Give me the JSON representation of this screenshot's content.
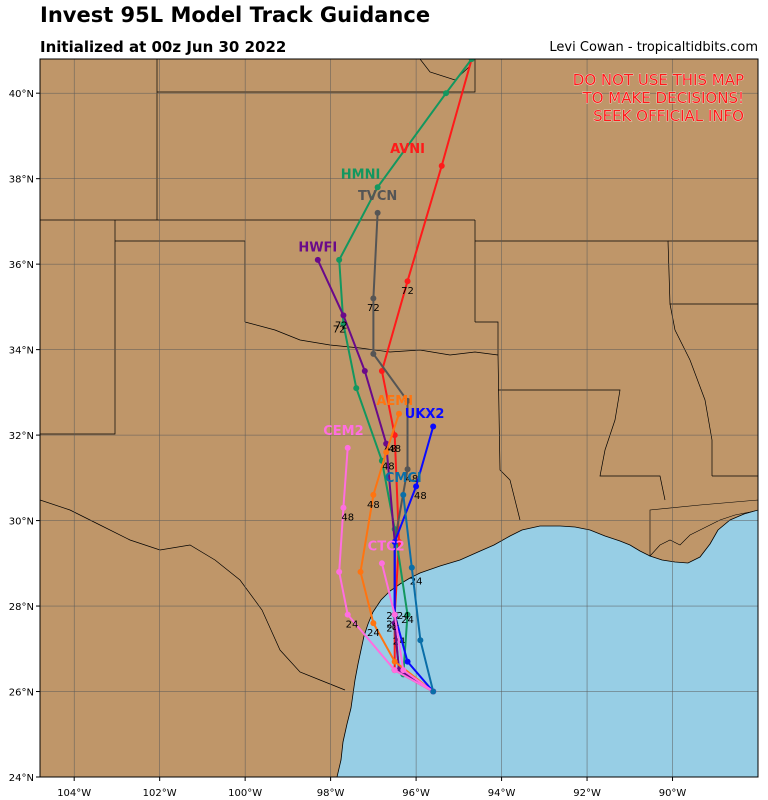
{
  "header": {
    "title": "Invest 95L Model Track Guidance",
    "subtitle": "Initialized at 00z Jun 30 2022",
    "credit": "Levi Cowan - tropicaltidbits.com"
  },
  "warning": [
    "DO NOT USE THIS MAP",
    "TO MAKE DECISIONS!",
    "SEEK OFFICIAL INFO"
  ],
  "colors": {
    "land": "#bf9669",
    "water": "#97cee5",
    "warning": "#ff1a1a"
  },
  "axes": {
    "lon_ticks": [
      "104°W",
      "102°W",
      "100°W",
      "98°W",
      "96°W",
      "94°W",
      "92°W",
      "90°W"
    ],
    "lat_ticks": [
      "40°N",
      "38°N",
      "36°N",
      "34°N",
      "32°N",
      "30°N",
      "28°N",
      "26°N",
      "24°N"
    ]
  },
  "chart_data": {
    "type": "map-tracks",
    "lon_range": [
      -104.8,
      -88.0
    ],
    "lat_range": [
      24.0,
      40.8
    ],
    "tracks": [
      {
        "name": "AVNI",
        "color": "#ff1a1a",
        "label_at": [
          -96.2,
          38.6
        ],
        "points": [
          [
            -95.6,
            26.0
          ],
          [
            -96.5,
            26.5
          ],
          [
            -96.5,
            27.8
          ],
          [
            -96.4,
            29.5
          ],
          [
            -96.5,
            32.0
          ],
          [
            -96.8,
            33.5
          ],
          [
            -96.2,
            35.6
          ],
          [
            -95.4,
            38.3
          ],
          [
            -94.7,
            40.8
          ]
        ],
        "hour_labels": [
          {
            "text": "24",
            "at": [
              -96.55,
              27.7
            ]
          },
          {
            "text": "48",
            "at": [
              -96.5,
              31.6
            ]
          },
          {
            "text": "72",
            "at": [
              -96.2,
              35.3
            ]
          }
        ]
      },
      {
        "name": "HMNI",
        "color": "#13975f",
        "label_at": [
          -97.3,
          38.0
        ],
        "points": [
          [
            -95.6,
            26.0
          ],
          [
            -96.3,
            26.4
          ],
          [
            -96.2,
            27.8
          ],
          [
            -96.5,
            29.8
          ],
          [
            -96.8,
            31.4
          ],
          [
            -97.4,
            33.1
          ],
          [
            -97.7,
            34.6
          ],
          [
            -97.8,
            36.1
          ],
          [
            -96.9,
            37.8
          ],
          [
            -95.3,
            40.0
          ],
          [
            -94.7,
            40.8
          ]
        ],
        "hour_labels": [
          {
            "text": "24",
            "at": [
              -96.2,
              27.6
            ]
          },
          {
            "text": "48",
            "at": [
              -96.65,
              31.2
            ]
          },
          {
            "text": "72",
            "at": [
              -97.8,
              34.4
            ]
          }
        ]
      },
      {
        "name": "TVCN",
        "color": "#555555",
        "label_at": [
          -96.9,
          37.5
        ],
        "points": [
          [
            -95.6,
            26.0
          ],
          [
            -96.4,
            26.5
          ],
          [
            -96.5,
            27.5
          ],
          [
            -96.5,
            29.5
          ],
          [
            -96.2,
            31.2
          ],
          [
            -96.2,
            32.8
          ],
          [
            -97.0,
            33.9
          ],
          [
            -97.0,
            35.2
          ],
          [
            -96.9,
            37.2
          ]
        ],
        "hour_labels": [
          {
            "text": "24",
            "at": [
              -96.4,
              27.1
            ]
          },
          {
            "text": "48",
            "at": [
              -96.1,
              30.9
            ]
          },
          {
            "text": "72",
            "at": [
              -97.0,
              34.9
            ]
          }
        ]
      },
      {
        "name": "HWFI",
        "color": "#6a0a8a",
        "label_at": [
          -98.3,
          36.3
        ],
        "points": [
          [
            -95.6,
            26.0
          ],
          [
            -96.4,
            26.5
          ],
          [
            -96.5,
            27.6
          ],
          [
            -96.5,
            29.5
          ],
          [
            -96.7,
            31.8
          ],
          [
            -97.2,
            33.5
          ],
          [
            -97.7,
            34.8
          ],
          [
            -98.3,
            36.1
          ]
        ],
        "hour_labels": [
          {
            "text": "24",
            "at": [
              -96.55,
              27.4
            ]
          },
          {
            "text": "48",
            "at": [
              -96.6,
              31.6
            ]
          },
          {
            "text": "72",
            "at": [
              -97.75,
              34.5
            ]
          }
        ]
      },
      {
        "name": "AEMI",
        "color": "#ff7410",
        "label_at": [
          -96.5,
          32.7
        ],
        "points": [
          [
            -95.6,
            26.0
          ],
          [
            -96.5,
            26.7
          ],
          [
            -97.0,
            27.6
          ],
          [
            -97.3,
            28.8
          ],
          [
            -97.0,
            30.6
          ],
          [
            -96.7,
            31.6
          ],
          [
            -96.4,
            32.5
          ]
        ],
        "hour_labels": [
          {
            "text": "24",
            "at": [
              -97.0,
              27.3
            ]
          },
          {
            "text": "48",
            "at": [
              -97.0,
              30.3
            ]
          }
        ]
      },
      {
        "name": "UKX2",
        "color": "#0a0aff",
        "label_at": [
          -95.8,
          32.4
        ],
        "points": [
          [
            -95.6,
            26.0
          ],
          [
            -96.2,
            26.7
          ],
          [
            -96.5,
            27.8
          ],
          [
            -96.5,
            29.5
          ],
          [
            -96.0,
            30.8
          ],
          [
            -95.6,
            32.2
          ]
        ],
        "hour_labels": [
          {
            "text": "24",
            "at": [
              -96.55,
              27.5
            ]
          },
          {
            "text": "48",
            "at": [
              -95.9,
              30.5
            ]
          }
        ]
      },
      {
        "name": "CEM2",
        "color": "#ff6ee0",
        "label_at": [
          -97.7,
          32.0
        ],
        "points": [
          [
            -95.6,
            26.0
          ],
          [
            -96.5,
            26.5
          ],
          [
            -97.6,
            27.8
          ],
          [
            -97.8,
            28.8
          ],
          [
            -97.7,
            30.3
          ],
          [
            -97.6,
            31.7
          ]
        ],
        "hour_labels": [
          {
            "text": "24",
            "at": [
              -97.5,
              27.5
            ]
          },
          {
            "text": "48",
            "at": [
              -97.6,
              30.0
            ]
          }
        ]
      },
      {
        "name": "CTC2",
        "color": "#ff6ee0",
        "label_at": [
          -96.7,
          29.3
        ],
        "points": [
          [
            -95.6,
            26.0
          ],
          [
            -96.3,
            26.5
          ],
          [
            -96.5,
            27.8
          ],
          [
            -96.8,
            29.0
          ]
        ],
        "hour_labels": [
          {
            "text": "24",
            "at": [
              -96.0,
              28.5
            ]
          }
        ]
      },
      {
        "name": "CMCI",
        "color": "#0a6ea8",
        "label_at": [
          -96.3,
          30.9
        ],
        "points": [
          [
            -95.6,
            26.0
          ],
          [
            -95.9,
            27.2
          ],
          [
            -96.1,
            28.9
          ],
          [
            -96.3,
            30.6
          ]
        ],
        "hour_labels": [
          {
            "text": "24",
            "at": [
              -96.3,
              27.7
            ]
          }
        ]
      }
    ]
  }
}
